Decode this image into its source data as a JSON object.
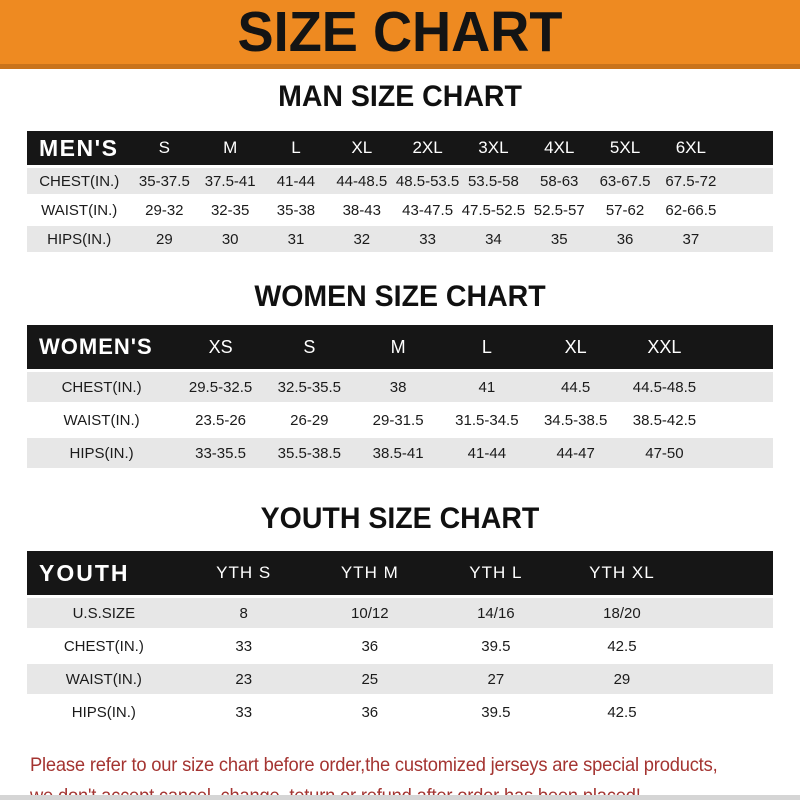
{
  "banner": {
    "title": "SIZE CHART"
  },
  "chart_data": [
    {
      "type": "table",
      "title": "MAN SIZE CHART",
      "columns": [
        "MEN'S",
        "S",
        "M",
        "L",
        "XL",
        "2XL",
        "3XL",
        "4XL",
        "5XL",
        "6XL"
      ],
      "rows": [
        [
          "CHEST(IN.)",
          "35-37.5",
          "37.5-41",
          "41-44",
          "44-48.5",
          "48.5-53.5",
          "53.5-58",
          "58-63",
          "63-67.5",
          "67.5-72"
        ],
        [
          "WAIST(IN.)",
          "29-32",
          "32-35",
          "35-38",
          "38-43",
          "43-47.5",
          "47.5-52.5",
          "52.5-57",
          "57-62",
          "62-66.5"
        ],
        [
          "HIPS(IN.)",
          "29",
          "30",
          "31",
          "32",
          "33",
          "34",
          "35",
          "36",
          "37"
        ]
      ]
    },
    {
      "type": "table",
      "title": "WOMEN SIZE CHART",
      "columns": [
        "WOMEN'S",
        "XS",
        "S",
        "M",
        "L",
        "XL",
        "XXL"
      ],
      "rows": [
        [
          "CHEST(IN.)",
          "29.5-32.5",
          "32.5-35.5",
          "38",
          "41",
          "44.5",
          "44.5-48.5"
        ],
        [
          "WAIST(IN.)",
          "23.5-26",
          "26-29",
          "29-31.5",
          "31.5-34.5",
          "34.5-38.5",
          "38.5-42.5"
        ],
        [
          "HIPS(IN.)",
          "33-35.5",
          "35.5-38.5",
          "38.5-41",
          "41-44",
          "44-47",
          "47-50"
        ]
      ]
    },
    {
      "type": "table",
      "title": "YOUTH SIZE CHART",
      "columns": [
        "YOUTH",
        "YTH S",
        "YTH M",
        "YTH L",
        "YTH XL"
      ],
      "rows": [
        [
          "U.S.SIZE",
          "8",
          "10/12",
          "14/16",
          "18/20"
        ],
        [
          "CHEST(IN.)",
          "33",
          "36",
          "39.5",
          "42.5"
        ],
        [
          "WAIST(IN.)",
          "23",
          "25",
          "27",
          "29"
        ],
        [
          "HIPS(IN.)",
          "33",
          "36",
          "39.5",
          "42.5"
        ]
      ]
    }
  ],
  "footer": {
    "line1": "Please refer to our size chart before order,the customized jerseys are special products,",
    "line2": "we don't accept cancel, change, teturn or refund after order has been placed!"
  },
  "colors": {
    "banner_bg": "#EE8A21",
    "banner_edge": "#C9731B",
    "table_header_bg": "#161616",
    "row_stripe": "#E7E7E7",
    "footer_text": "#A43431"
  }
}
